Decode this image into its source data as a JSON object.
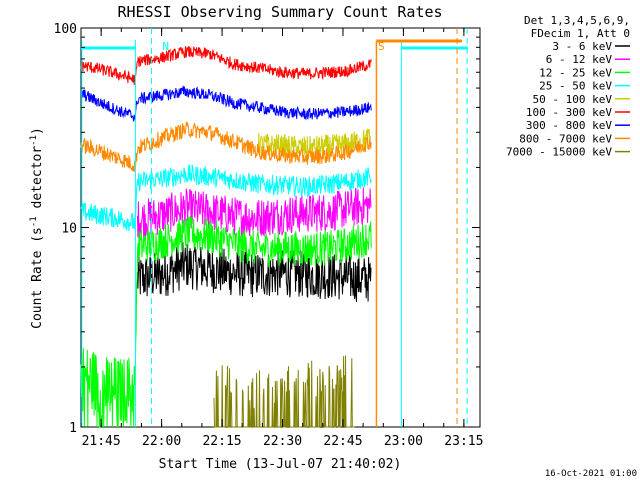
{
  "chart_data": {
    "type": "line",
    "title": "RHESSI Observing Summary Count Rates",
    "xlabel": "Start Time (13-Jul-07 21:40:02)",
    "ylabel_main": "Count Rate (s",
    "ylabel_sup1": "-1",
    "ylabel_mid": " detector",
    "ylabel_sup2": "-1",
    "ylabel_end": ")",
    "yscale": "log",
    "ylim": [
      1,
      100
    ],
    "xlim_minutes": [
      0,
      99
    ],
    "x_ticks": [
      {
        "label": "21:45",
        "minute": 5
      },
      {
        "label": "22:00",
        "minute": 20
      },
      {
        "label": "22:15",
        "minute": 35
      },
      {
        "label": "22:30",
        "minute": 50
      },
      {
        "label": "22:45",
        "minute": 65
      },
      {
        "label": "23:00",
        "minute": 80
      },
      {
        "label": "23:15",
        "minute": 95
      }
    ],
    "y_ticks": [
      {
        "label": "1",
        "value": 1
      },
      {
        "label": "10",
        "value": 10
      },
      {
        "label": "100",
        "value": 100
      }
    ],
    "legend": {
      "header": [
        "Det 1,3,4,5,6,9,",
        "FDecim 1, Att 0"
      ],
      "placement": "top-right"
    },
    "series": [
      {
        "name": "3 - 6 keV",
        "color": "#000000",
        "points": [
          [
            14,
            5.5
          ],
          [
            20,
            5.8
          ],
          [
            26,
            6.5
          ],
          [
            32,
            6.2
          ],
          [
            38,
            5.9
          ],
          [
            44,
            5.8
          ],
          [
            50,
            5.9
          ],
          [
            56,
            5.8
          ],
          [
            62,
            5.7
          ],
          [
            66,
            5.6
          ],
          [
            72,
            5.5
          ]
        ]
      },
      {
        "name": "6 - 12 keV",
        "color": "#ff00ff",
        "points": [
          [
            14,
            11
          ],
          [
            20,
            11.5
          ],
          [
            26,
            12.5
          ],
          [
            32,
            12
          ],
          [
            38,
            11.4
          ],
          [
            44,
            11.2
          ],
          [
            50,
            11.6
          ],
          [
            56,
            11.8
          ],
          [
            62,
            12
          ],
          [
            66,
            12.4
          ],
          [
            72,
            13
          ]
        ]
      },
      {
        "name": "12 - 25 keV",
        "color": "#00ff00",
        "points": [
          [
            0,
            1.8
          ],
          [
            5,
            1.6
          ],
          [
            10,
            1.5
          ],
          [
            13.5,
            1.6
          ],
          [
            14,
            8
          ],
          [
            20,
            8.5
          ],
          [
            26,
            9.3
          ],
          [
            32,
            9
          ],
          [
            38,
            8.3
          ],
          [
            44,
            7.8
          ],
          [
            50,
            7.9
          ],
          [
            56,
            7.8
          ],
          [
            62,
            7.9
          ],
          [
            66,
            8.2
          ],
          [
            72,
            9
          ]
        ]
      },
      {
        "name": "25 - 50 keV",
        "color": "#00ffff",
        "points": [
          [
            0,
            12
          ],
          [
            5,
            11.5
          ],
          [
            10,
            11
          ],
          [
            13.5,
            10.5
          ],
          [
            14,
            17
          ],
          [
            20,
            17.5
          ],
          [
            26,
            18.5
          ],
          [
            32,
            18
          ],
          [
            38,
            17.3
          ],
          [
            44,
            16.5
          ],
          [
            50,
            16.3
          ],
          [
            56,
            16
          ],
          [
            62,
            16.5
          ],
          [
            66,
            17
          ],
          [
            72,
            18
          ]
        ]
      },
      {
        "name": "50 - 100 keV",
        "color": "#cccc00",
        "points": [
          [
            44,
            26
          ],
          [
            50,
            25.5
          ],
          [
            56,
            25
          ],
          [
            62,
            25.5
          ],
          [
            66,
            26
          ],
          [
            72,
            28
          ]
        ]
      },
      {
        "name": "100 - 300 keV",
        "color": "#ff0000",
        "points": [
          [
            0,
            65
          ],
          [
            5,
            62
          ],
          [
            10,
            58
          ],
          [
            13.5,
            55
          ],
          [
            14,
            68
          ],
          [
            20,
            71
          ],
          [
            26,
            76
          ],
          [
            32,
            74
          ],
          [
            38,
            66
          ],
          [
            44,
            63
          ],
          [
            50,
            60
          ],
          [
            56,
            59
          ],
          [
            62,
            60
          ],
          [
            66,
            61
          ],
          [
            72,
            66
          ]
        ]
      },
      {
        "name": "300 - 800 keV",
        "color": "#0000ff",
        "points": [
          [
            0,
            47
          ],
          [
            5,
            42
          ],
          [
            10,
            38
          ],
          [
            13.5,
            36
          ],
          [
            14,
            44
          ],
          [
            20,
            46
          ],
          [
            26,
            48
          ],
          [
            32,
            46
          ],
          [
            38,
            42
          ],
          [
            44,
            40
          ],
          [
            50,
            38
          ],
          [
            56,
            37
          ],
          [
            62,
            37.5
          ],
          [
            66,
            38
          ],
          [
            72,
            40
          ]
        ]
      },
      {
        "name": "800 - 7000 keV",
        "color": "#ff8800",
        "points": [
          [
            0,
            26
          ],
          [
            5,
            24
          ],
          [
            10,
            22
          ],
          [
            13.5,
            20.5
          ],
          [
            14,
            25
          ],
          [
            20,
            28
          ],
          [
            26,
            31
          ],
          [
            32,
            30
          ],
          [
            38,
            27
          ],
          [
            44,
            24
          ],
          [
            50,
            23
          ],
          [
            56,
            22.5
          ],
          [
            62,
            23
          ],
          [
            66,
            24
          ],
          [
            72,
            27
          ]
        ]
      },
      {
        "name": "7000 - 15000 keV",
        "color": "#808000",
        "points": [
          [
            33,
            1.3
          ],
          [
            36,
            1.4
          ],
          [
            40,
            1.2
          ],
          [
            55,
            1.3
          ],
          [
            64,
            1.5
          ],
          [
            68,
            1.4
          ]
        ]
      }
    ],
    "annotations": [
      {
        "label": "N",
        "minute": 21,
        "color": "#00ffff"
      },
      {
        "label": "S",
        "minute": 74.5,
        "color": "#ff8800"
      }
    ]
  },
  "footer": {
    "timestamp": "16-Oct-2021 01:00"
  }
}
